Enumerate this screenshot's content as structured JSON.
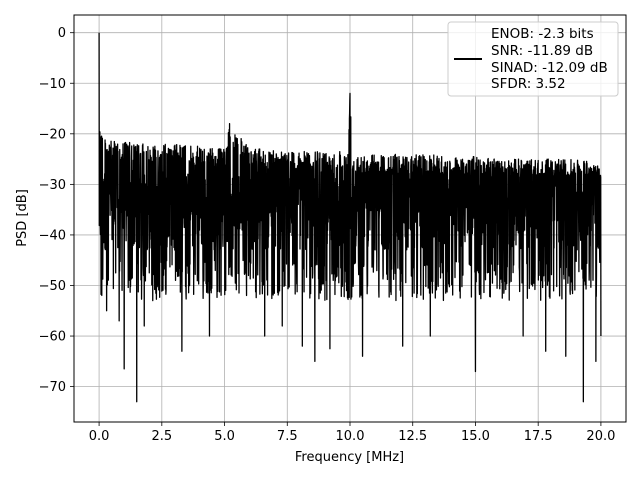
{
  "chart_data": {
    "type": "line",
    "title": "",
    "xlabel": "Frequency [MHz]",
    "ylabel": "PSD [dB]",
    "xlim": [
      -1.0,
      21.0
    ],
    "ylim": [
      -77,
      3.5
    ],
    "xticks": [
      0.0,
      2.5,
      5.0,
      7.5,
      10.0,
      12.5,
      15.0,
      17.5,
      20.0
    ],
    "xtick_labels": [
      "0.0",
      "2.5",
      "5.0",
      "7.5",
      "10.0",
      "12.5",
      "15.0",
      "17.5",
      "20.0"
    ],
    "yticks": [
      0,
      -10,
      -20,
      -30,
      -40,
      -50,
      -60,
      -70
    ],
    "ytick_labels": [
      "0",
      "−10",
      "−20",
      "−30",
      "−40",
      "−50",
      "−60",
      "−70"
    ],
    "grid": true,
    "legend_position": "top-right",
    "series": [
      {
        "color": "#000000",
        "x": [
          0.0,
          0.02,
          0.05,
          0.1,
          0.15,
          0.2,
          0.3,
          0.5,
          1.0,
          1.5,
          2.0,
          3.0,
          4.0,
          5.0,
          5.2,
          6.0,
          7.0,
          8.0,
          9.0,
          9.9,
          10.0,
          10.1,
          11.0,
          12.0,
          13.0,
          14.0,
          15.0,
          16.0,
          17.0,
          18.0,
          19.0,
          20.0
        ],
        "y": [
          0,
          -15,
          -18,
          -19,
          -20,
          -20.5,
          -21,
          -21.5,
          -21.5,
          -22,
          -22,
          -22,
          -22.5,
          -23,
          -18,
          -23,
          -23,
          -23.5,
          -23.5,
          -23,
          -12,
          -23.5,
          -24,
          -24,
          -24,
          -24.5,
          -24.5,
          -25,
          -25,
          -25,
          -25,
          -26
        ],
        "noise_floor_mean": -35,
        "noise_min": [
          [
            0.3,
            -55
          ],
          [
            0.8,
            -57
          ],
          [
            1.0,
            -66.5
          ],
          [
            1.5,
            -73
          ],
          [
            1.8,
            -58
          ],
          [
            3.3,
            -63
          ],
          [
            4.4,
            -60
          ],
          [
            6.6,
            -60
          ],
          [
            7.3,
            -58
          ],
          [
            8.1,
            -62
          ],
          [
            8.6,
            -65
          ],
          [
            9.2,
            -62.5
          ],
          [
            10.5,
            -64
          ],
          [
            12.1,
            -62
          ],
          [
            13.2,
            -60
          ],
          [
            15.0,
            -67
          ],
          [
            16.9,
            -60
          ],
          [
            17.8,
            -63
          ],
          [
            18.6,
            -64
          ],
          [
            19.3,
            -73
          ],
          [
            19.8,
            -65
          ],
          [
            20.0,
            -60
          ]
        ]
      }
    ],
    "legend": {
      "lines": [
        "ENOB: -2.3 bits",
        "SNR: -11.89 dB",
        "SINAD: -12.09 dB",
        "SFDR: 3.52"
      ]
    }
  }
}
